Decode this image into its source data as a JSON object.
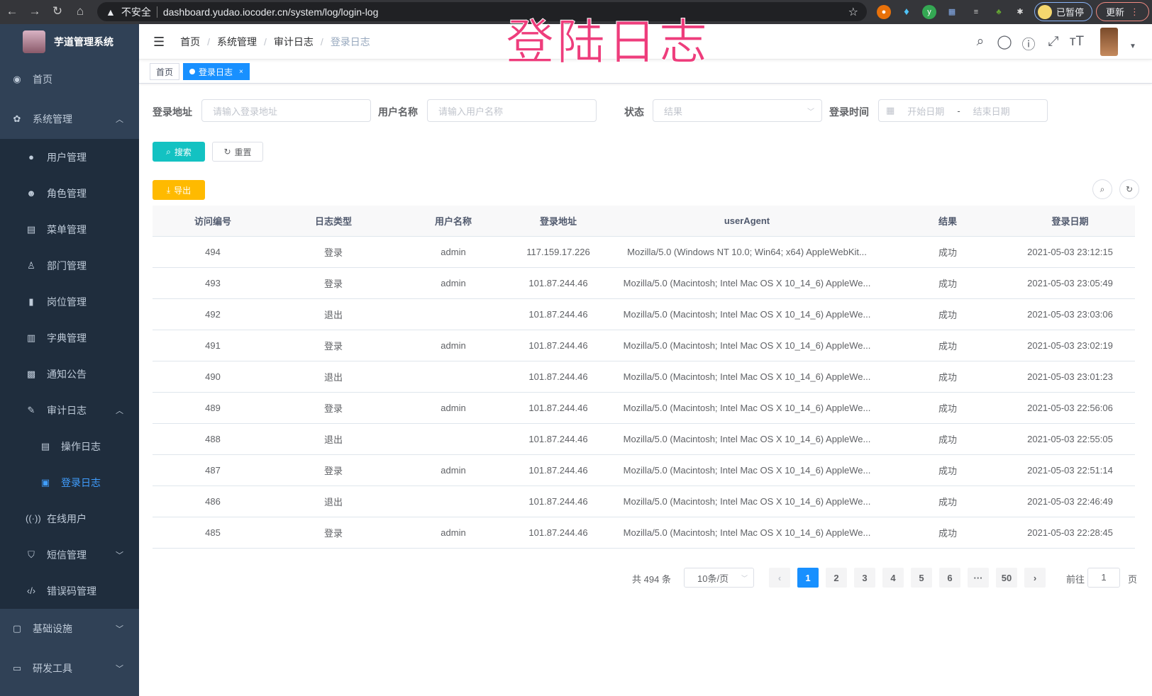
{
  "browser": {
    "security": "不安全",
    "url": "dashboard.yudao.iocoder.cn/system/log/login-log",
    "profile_status": "已暂停",
    "update_label": "更新"
  },
  "overlay_title": "登陆日志",
  "sidebar": {
    "title": "芋道管理系统",
    "items": [
      {
        "label": "首页",
        "icon": "dashboard-icon"
      },
      {
        "label": "系统管理",
        "icon": "gear-icon",
        "expanded": true
      },
      {
        "label": "用户管理",
        "icon": "user-icon"
      },
      {
        "label": "角色管理",
        "icon": "peoples-icon"
      },
      {
        "label": "菜单管理",
        "icon": "tree-table-icon"
      },
      {
        "label": "部门管理",
        "icon": "tree-icon"
      },
      {
        "label": "岗位管理",
        "icon": "post-icon"
      },
      {
        "label": "字典管理",
        "icon": "dict-icon"
      },
      {
        "label": "通知公告",
        "icon": "message-icon"
      },
      {
        "label": "审计日志",
        "icon": "log-icon",
        "expanded": true
      },
      {
        "label": "操作日志",
        "icon": "form-icon"
      },
      {
        "label": "登录日志",
        "icon": "logininfor-icon",
        "active": true
      },
      {
        "label": "在线用户",
        "icon": "online-icon"
      },
      {
        "label": "短信管理",
        "icon": "shield-icon"
      },
      {
        "label": "错误码管理",
        "icon": "code-icon"
      },
      {
        "label": "基础设施",
        "icon": "monitor-icon"
      },
      {
        "label": "研发工具",
        "icon": "tool-icon"
      }
    ]
  },
  "breadcrumb": [
    "首页",
    "系统管理",
    "审计日志",
    "登录日志"
  ],
  "tags": [
    {
      "label": "首页"
    },
    {
      "label": "登录日志",
      "active": true
    }
  ],
  "filters": {
    "ip": {
      "label": "登录地址",
      "placeholder": "请输入登录地址"
    },
    "username": {
      "label": "用户名称",
      "placeholder": "请输入用户名称"
    },
    "status": {
      "label": "状态",
      "placeholder": "结果"
    },
    "time": {
      "label": "登录时间",
      "start": "开始日期",
      "sep": "-",
      "end": "结束日期"
    }
  },
  "actions": {
    "search": "搜索",
    "reset": "重置",
    "export": "导出"
  },
  "colors": {
    "sidebar": "#304156",
    "submenu": "#1f2d3d",
    "primary": "#1890ff",
    "search": "#13c2c2",
    "export": "#ffba00",
    "overlay": "#ee3d7c"
  },
  "table": {
    "columns": [
      "访问编号",
      "日志类型",
      "用户名称",
      "登录地址",
      "userAgent",
      "结果",
      "登录日期"
    ],
    "rows": [
      [
        "494",
        "登录",
        "admin",
        "117.159.17.226",
        "Mozilla/5.0 (Windows NT 10.0; Win64; x64) AppleWebKit...",
        "成功",
        "2021-05-03 23:12:15"
      ],
      [
        "493",
        "登录",
        "admin",
        "101.87.244.46",
        "Mozilla/5.0 (Macintosh; Intel Mac OS X 10_14_6) AppleWe...",
        "成功",
        "2021-05-03 23:05:49"
      ],
      [
        "492",
        "退出",
        "",
        "101.87.244.46",
        "Mozilla/5.0 (Macintosh; Intel Mac OS X 10_14_6) AppleWe...",
        "成功",
        "2021-05-03 23:03:06"
      ],
      [
        "491",
        "登录",
        "admin",
        "101.87.244.46",
        "Mozilla/5.0 (Macintosh; Intel Mac OS X 10_14_6) AppleWe...",
        "成功",
        "2021-05-03 23:02:19"
      ],
      [
        "490",
        "退出",
        "",
        "101.87.244.46",
        "Mozilla/5.0 (Macintosh; Intel Mac OS X 10_14_6) AppleWe...",
        "成功",
        "2021-05-03 23:01:23"
      ],
      [
        "489",
        "登录",
        "admin",
        "101.87.244.46",
        "Mozilla/5.0 (Macintosh; Intel Mac OS X 10_14_6) AppleWe...",
        "成功",
        "2021-05-03 22:56:06"
      ],
      [
        "488",
        "退出",
        "",
        "101.87.244.46",
        "Mozilla/5.0 (Macintosh; Intel Mac OS X 10_14_6) AppleWe...",
        "成功",
        "2021-05-03 22:55:05"
      ],
      [
        "487",
        "登录",
        "admin",
        "101.87.244.46",
        "Mozilla/5.0 (Macintosh; Intel Mac OS X 10_14_6) AppleWe...",
        "成功",
        "2021-05-03 22:51:14"
      ],
      [
        "486",
        "退出",
        "",
        "101.87.244.46",
        "Mozilla/5.0 (Macintosh; Intel Mac OS X 10_14_6) AppleWe...",
        "成功",
        "2021-05-03 22:46:49"
      ],
      [
        "485",
        "登录",
        "admin",
        "101.87.244.46",
        "Mozilla/5.0 (Macintosh; Intel Mac OS X 10_14_6) AppleWe...",
        "成功",
        "2021-05-03 22:28:45"
      ]
    ]
  },
  "pagination": {
    "total": "共 494 条",
    "page_size": "10条/页",
    "pages": [
      "1",
      "2",
      "3",
      "4",
      "5",
      "6",
      "···",
      "50"
    ],
    "current": "1",
    "goto_label": "前往",
    "goto_value": "1",
    "page_suffix": "页"
  }
}
